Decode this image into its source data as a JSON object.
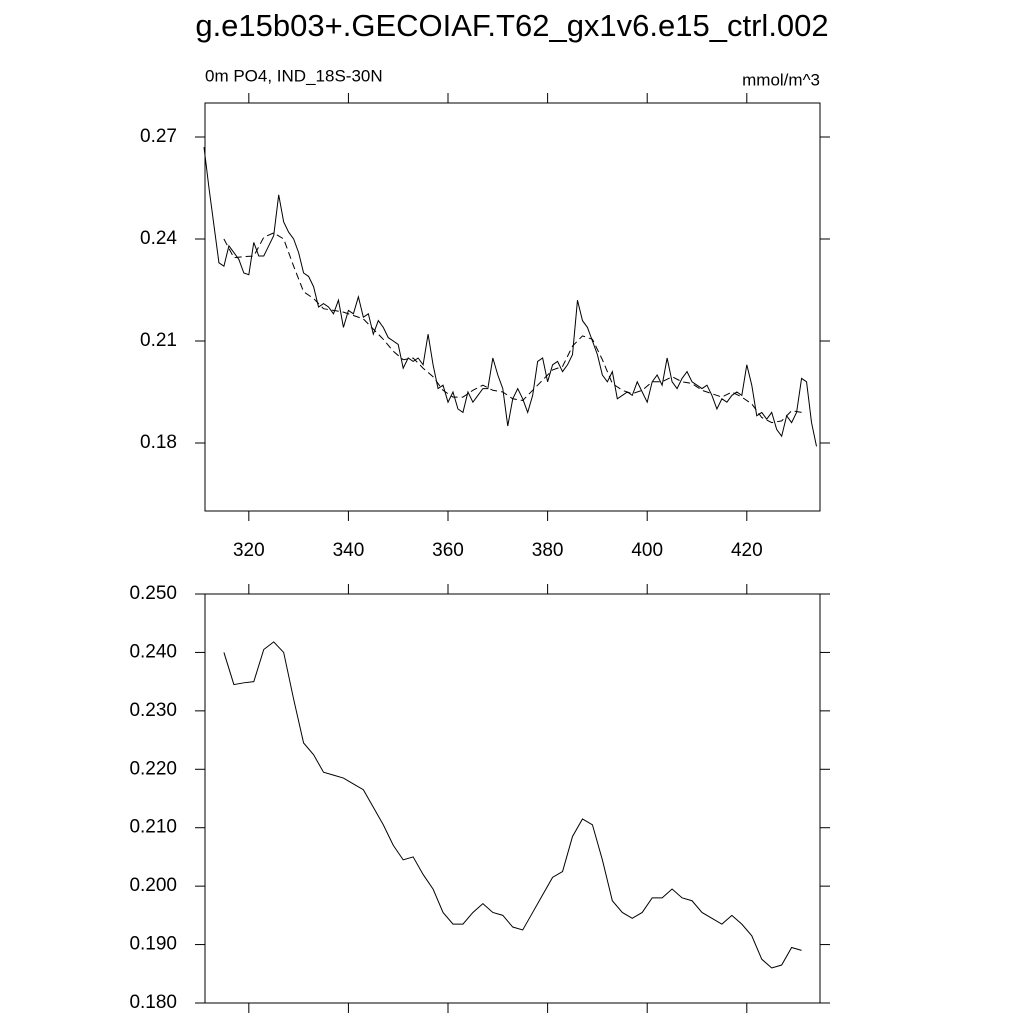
{
  "chart_data": [
    {
      "type": "line",
      "title": "g.e15b03+.GECOIAF.T62_gx1v6.e15_ctrl.002",
      "subtitle": "0m PO4, IND_18S-30N",
      "units": "mmol/m^3",
      "xlim": [
        311.2,
        434.7
      ],
      "xticks": [
        320,
        340,
        360,
        380,
        400,
        420
      ],
      "ylim": [
        0.16,
        0.28
      ],
      "yticks": [
        0.18,
        0.21,
        0.24,
        0.27
      ],
      "series": [
        {
          "color": "#000000",
          "dashed": false,
          "x": [
            311,
            312,
            313,
            314,
            315,
            316,
            317,
            318,
            319,
            320,
            321,
            322,
            323,
            324,
            325,
            326,
            327,
            328,
            329,
            330,
            331,
            332,
            333,
            334,
            335,
            336,
            337,
            338,
            339,
            340,
            341,
            342,
            343,
            344,
            345,
            346,
            347,
            348,
            349,
            350,
            351,
            352,
            353,
            354,
            355,
            356,
            357,
            358,
            359,
            360,
            361,
            362,
            363,
            364,
            365,
            366,
            367,
            368,
            369,
            370,
            371,
            372,
            373,
            374,
            375,
            376,
            377,
            378,
            379,
            380,
            381,
            382,
            383,
            384,
            385,
            386,
            387,
            388,
            389,
            390,
            391,
            392,
            393,
            394,
            395,
            396,
            397,
            398,
            399,
            400,
            401,
            402,
            403,
            404,
            405,
            406,
            407,
            408,
            409,
            410,
            411,
            412,
            413,
            414,
            415,
            416,
            417,
            418,
            419,
            420,
            421,
            422,
            423,
            424,
            425,
            426,
            427,
            428,
            429,
            430,
            431,
            432,
            433,
            434
          ],
          "values": [
            0.267,
            0.255,
            0.244,
            0.233,
            0.232,
            0.238,
            0.236,
            0.234,
            0.23,
            0.2295,
            0.239,
            0.235,
            0.235,
            0.238,
            0.241,
            0.253,
            0.245,
            0.242,
            0.24,
            0.236,
            0.23,
            0.229,
            0.226,
            0.22,
            0.221,
            0.22,
            0.218,
            0.222,
            0.214,
            0.219,
            0.218,
            0.223,
            0.217,
            0.218,
            0.212,
            0.216,
            0.214,
            0.211,
            0.21,
            0.209,
            0.202,
            0.205,
            0.204,
            0.205,
            0.203,
            0.212,
            0.203,
            0.196,
            0.197,
            0.192,
            0.195,
            0.19,
            0.189,
            0.195,
            0.192,
            0.194,
            0.196,
            0.196,
            0.205,
            0.2,
            0.196,
            0.185,
            0.193,
            0.196,
            0.193,
            0.189,
            0.194,
            0.204,
            0.205,
            0.198,
            0.203,
            0.204,
            0.201,
            0.203,
            0.206,
            0.222,
            0.216,
            0.214,
            0.21,
            0.206,
            0.2,
            0.198,
            0.201,
            0.193,
            0.194,
            0.195,
            0.194,
            0.198,
            0.195,
            0.192,
            0.198,
            0.2,
            0.197,
            0.205,
            0.198,
            0.196,
            0.199,
            0.201,
            0.198,
            0.197,
            0.196,
            0.197,
            0.194,
            0.19,
            0.193,
            0.192,
            0.194,
            0.195,
            0.194,
            0.203,
            0.197,
            0.188,
            0.189,
            0.187,
            0.189,
            0.184,
            0.182,
            0.188,
            0.186,
            0.189,
            0.199,
            0.198,
            0.186,
            0.179
          ]
        },
        {
          "color": "#000000",
          "dashed": true,
          "x": [
            315,
            317,
            319,
            321,
            323,
            325,
            327,
            329,
            331,
            333,
            335,
            337,
            339,
            341,
            343,
            345,
            347,
            349,
            351,
            353,
            355,
            357,
            359,
            361,
            363,
            365,
            367,
            369,
            371,
            373,
            375,
            377,
            379,
            381,
            383,
            385,
            387,
            389,
            391,
            393,
            395,
            397,
            399,
            401,
            403,
            405,
            407,
            409,
            411,
            413,
            415,
            417,
            419,
            421,
            423,
            425,
            427,
            429,
            431
          ],
          "values": [
            0.24,
            0.2345,
            0.2348,
            0.235,
            0.2405,
            0.2418,
            0.24,
            0.232,
            0.2245,
            0.2225,
            0.2195,
            0.219,
            0.2185,
            0.2175,
            0.2165,
            0.2135,
            0.2105,
            0.207,
            0.2045,
            0.205,
            0.202,
            0.1995,
            0.1955,
            0.1935,
            0.1935,
            0.1955,
            0.197,
            0.1955,
            0.195,
            0.193,
            0.1925,
            0.1955,
            0.1985,
            0.2015,
            0.2025,
            0.2085,
            0.2115,
            0.2105,
            0.2045,
            0.1975,
            0.1955,
            0.1945,
            0.1955,
            0.198,
            0.198,
            0.1995,
            0.198,
            0.1975,
            0.1955,
            0.1945,
            0.1935,
            0.195,
            0.1935,
            0.1915,
            0.1875,
            0.186,
            0.1865,
            0.1895,
            0.189
          ]
        }
      ]
    },
    {
      "type": "line",
      "xlim": [
        311.2,
        434.7
      ],
      "xticks": [
        320,
        340,
        360,
        380,
        400,
        420
      ],
      "show_xtick_labels": false,
      "ylim": [
        0.18,
        0.25
      ],
      "yticks": [
        {
          "value": 0.18,
          "label": "0.180"
        },
        {
          "value": 0.19,
          "label": "0.190"
        },
        {
          "value": 0.2,
          "label": "0.200"
        },
        {
          "value": 0.21,
          "label": "0.210"
        },
        {
          "value": 0.22,
          "label": "0.220"
        },
        {
          "value": 0.23,
          "label": "0.230"
        },
        {
          "value": 0.24,
          "label": "0.240"
        },
        {
          "value": 0.25,
          "label": "0.250"
        }
      ],
      "series": [
        {
          "color": "#000000",
          "dashed": false,
          "x": [
            315,
            317,
            319,
            321,
            323,
            325,
            327,
            329,
            331,
            333,
            335,
            337,
            339,
            341,
            343,
            345,
            347,
            349,
            351,
            353,
            355,
            357,
            359,
            361,
            363,
            365,
            367,
            369,
            371,
            373,
            375,
            377,
            379,
            381,
            383,
            385,
            387,
            389,
            391,
            393,
            395,
            397,
            399,
            401,
            403,
            405,
            407,
            409,
            411,
            413,
            415,
            417,
            419,
            421,
            423,
            425,
            427,
            429,
            431
          ],
          "values": [
            0.24,
            0.2345,
            0.2348,
            0.235,
            0.2405,
            0.2418,
            0.24,
            0.232,
            0.2245,
            0.2225,
            0.2195,
            0.219,
            0.2185,
            0.2175,
            0.2165,
            0.2135,
            0.2105,
            0.207,
            0.2045,
            0.205,
            0.202,
            0.1995,
            0.1955,
            0.1935,
            0.1935,
            0.1955,
            0.197,
            0.1955,
            0.195,
            0.193,
            0.1925,
            0.1955,
            0.1985,
            0.2015,
            0.2025,
            0.2085,
            0.2115,
            0.2105,
            0.2045,
            0.1975,
            0.1955,
            0.1945,
            0.1955,
            0.198,
            0.198,
            0.1995,
            0.198,
            0.1975,
            0.1955,
            0.1945,
            0.1935,
            0.195,
            0.1935,
            0.1915,
            0.1875,
            0.186,
            0.1865,
            0.1895,
            0.189
          ]
        }
      ]
    }
  ]
}
